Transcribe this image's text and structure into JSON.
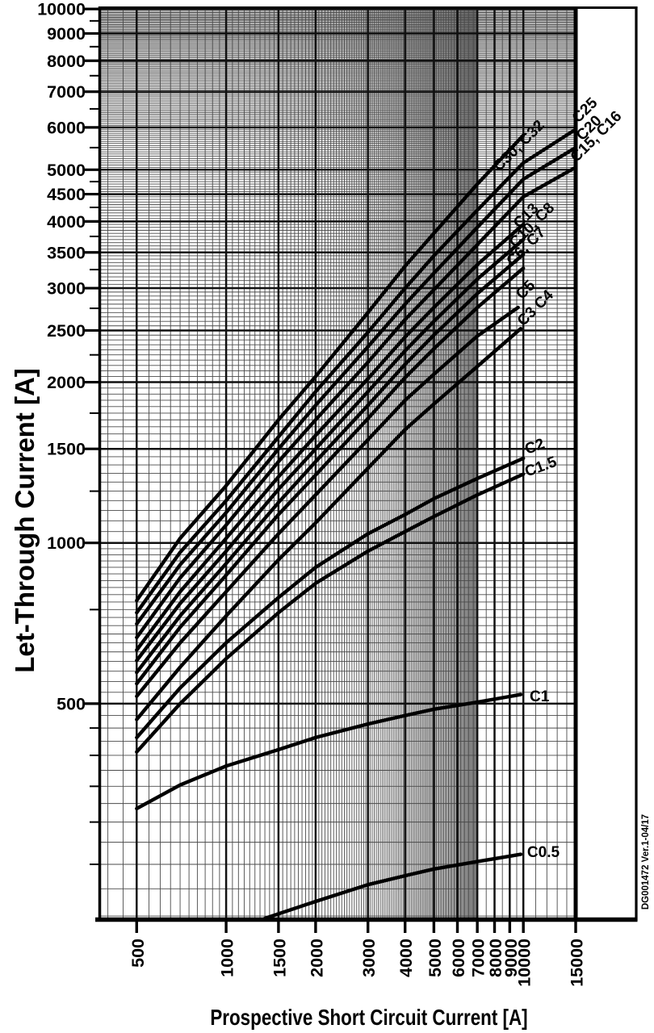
{
  "figure": {
    "y_axis_title": "Let-Through Current [A]",
    "x_axis_title": "Prospective Short Circuit Current [A]",
    "watermark": "DG001472  Ver.1-04/17",
    "colors": {
      "ink": "#000000",
      "grid_minor": "#4a4a4a",
      "grid_major": "#111111",
      "background": "#ffffff"
    }
  },
  "chart_data": {
    "type": "line",
    "x_scale": "log",
    "y_scale": "log",
    "xlabel": "Prospective Short Circuit Current [A]",
    "ylabel": "Let-Through Current [A]",
    "xlim": [
      372,
      15000
    ],
    "ylim": [
      198,
      10110
    ],
    "grid": "on",
    "x_ticks": [
      [
        500,
        "500"
      ],
      [
        1000,
        "1000"
      ],
      [
        1500,
        "1500"
      ],
      [
        2000,
        "2000"
      ],
      [
        3000,
        "3000"
      ],
      [
        4000,
        "4000"
      ],
      [
        5000,
        "5000"
      ],
      [
        6000,
        "6000"
      ],
      [
        7000,
        "7000"
      ],
      [
        8000,
        "8000"
      ],
      [
        9000,
        "9000"
      ],
      [
        10000,
        "10000"
      ],
      [
        15000,
        "15000"
      ]
    ],
    "y_ticks": [
      [
        500,
        "500"
      ],
      [
        1000,
        "1000"
      ],
      [
        1500,
        "1500"
      ],
      [
        2000,
        "2000"
      ],
      [
        2500,
        "2500"
      ],
      [
        3000,
        "3000"
      ],
      [
        3500,
        "3500"
      ],
      [
        4000,
        "4000"
      ],
      [
        4500,
        "4500"
      ],
      [
        5000,
        "5000"
      ],
      [
        6000,
        "6000"
      ],
      [
        7000,
        "7000"
      ],
      [
        8000,
        "8000"
      ],
      [
        9000,
        "9000"
      ],
      [
        10000,
        "10000"
      ]
    ],
    "y_minor_ticks": [
      250,
      300,
      350,
      400,
      450,
      750,
      1250,
      1750,
      2250,
      2750,
      3250,
      3750,
      4250,
      4750,
      5500,
      6500,
      7500,
      8500,
      9500
    ],
    "grid_minor_x": [
      [
        400,
        7000,
        50
      ],
      [
        7000,
        10000,
        500
      ],
      [
        10000,
        15000,
        1000
      ]
    ],
    "grid_minor_y": [
      [
        200,
        1000,
        25
      ],
      [
        1000,
        10000,
        50
      ]
    ],
    "grid_major_x": [
      500,
      1000,
      1500,
      2000,
      3000,
      4000,
      5000,
      6000,
      7000,
      8000,
      9000,
      10000
    ],
    "grid_major_y": [
      500,
      1000,
      1500,
      2000,
      2500,
      3000,
      3500,
      4000,
      4500,
      5000,
      6000,
      7000,
      8000,
      9000,
      10000
    ],
    "series": [
      {
        "name": "C30, C32",
        "points": [
          [
            500,
            780
          ],
          [
            700,
            1020
          ],
          [
            1000,
            1280
          ],
          [
            1500,
            1700
          ],
          [
            2000,
            2050
          ],
          [
            3000,
            2700
          ],
          [
            4000,
            3300
          ],
          [
            5000,
            3800
          ],
          [
            7000,
            4700
          ],
          [
            10000,
            5800
          ]
        ]
      },
      {
        "name": "C25",
        "points": [
          [
            500,
            740
          ],
          [
            700,
            960
          ],
          [
            1000,
            1200
          ],
          [
            1500,
            1580
          ],
          [
            2000,
            1920
          ],
          [
            3000,
            2480
          ],
          [
            4000,
            3000
          ],
          [
            5000,
            3450
          ],
          [
            7000,
            4200
          ],
          [
            10000,
            5150
          ],
          [
            15000,
            5950
          ]
        ]
      },
      {
        "name": "C20",
        "points": [
          [
            500,
            705
          ],
          [
            700,
            910
          ],
          [
            1000,
            1140
          ],
          [
            1500,
            1500
          ],
          [
            2000,
            1810
          ],
          [
            3000,
            2330
          ],
          [
            4000,
            2800
          ],
          [
            5000,
            3200
          ],
          [
            7000,
            3900
          ],
          [
            10000,
            4800
          ],
          [
            15000,
            5500
          ]
        ]
      },
      {
        "name": "C15, C16",
        "points": [
          [
            500,
            665
          ],
          [
            700,
            860
          ],
          [
            1000,
            1080
          ],
          [
            1500,
            1420
          ],
          [
            2000,
            1700
          ],
          [
            3000,
            2180
          ],
          [
            4000,
            2620
          ],
          [
            5000,
            2980
          ],
          [
            7000,
            3620
          ],
          [
            10000,
            4450
          ],
          [
            15000,
            5050
          ]
        ]
      },
      {
        "name": "C13",
        "points": [
          [
            500,
            630
          ],
          [
            700,
            810
          ],
          [
            1000,
            1020
          ],
          [
            1500,
            1330
          ],
          [
            2000,
            1590
          ],
          [
            3000,
            2030
          ],
          [
            4000,
            2430
          ],
          [
            5000,
            2760
          ],
          [
            7000,
            3320
          ],
          [
            10000,
            3950
          ]
        ]
      },
      {
        "name": "C10",
        "points": [
          [
            500,
            602
          ],
          [
            700,
            770
          ],
          [
            1000,
            965
          ],
          [
            1500,
            1260
          ],
          [
            2000,
            1500
          ],
          [
            3000,
            1920
          ],
          [
            4000,
            2290
          ],
          [
            5000,
            2600
          ],
          [
            7000,
            3120
          ],
          [
            10000,
            3700
          ]
        ]
      },
      {
        "name": "C8",
        "points": [
          [
            500,
            572
          ],
          [
            700,
            730
          ],
          [
            1000,
            915
          ],
          [
            1500,
            1190
          ],
          [
            2000,
            1420
          ],
          [
            3000,
            1810
          ],
          [
            4000,
            2160
          ],
          [
            5000,
            2450
          ],
          [
            7000,
            2930
          ],
          [
            10000,
            3470
          ]
        ]
      },
      {
        "name": "C6, C7",
        "points": [
          [
            500,
            545
          ],
          [
            700,
            695
          ],
          [
            1000,
            870
          ],
          [
            1500,
            1130
          ],
          [
            2000,
            1340
          ],
          [
            3000,
            1710
          ],
          [
            4000,
            2040
          ],
          [
            5000,
            2310
          ],
          [
            7000,
            2760
          ],
          [
            10000,
            3270
          ]
        ]
      },
      {
        "name": "C5",
        "points": [
          [
            500,
            516
          ],
          [
            700,
            650
          ],
          [
            1000,
            810
          ],
          [
            1500,
            1040
          ],
          [
            2000,
            1230
          ],
          [
            3000,
            1560
          ],
          [
            4000,
            1850
          ],
          [
            5000,
            2070
          ],
          [
            7000,
            2440
          ],
          [
            9600,
            2760
          ]
        ]
      },
      {
        "name": "C3 C4",
        "points": [
          [
            500,
            467
          ],
          [
            700,
            585
          ],
          [
            1000,
            730
          ],
          [
            1500,
            930
          ],
          [
            2000,
            1090
          ],
          [
            3000,
            1380
          ],
          [
            4000,
            1630
          ],
          [
            5000,
            1820
          ],
          [
            7000,
            2140
          ],
          [
            9800,
            2520
          ]
        ]
      },
      {
        "name": "C2",
        "points": [
          [
            500,
            432
          ],
          [
            700,
            535
          ],
          [
            1000,
            650
          ],
          [
            1500,
            790
          ],
          [
            2000,
            900
          ],
          [
            3000,
            1040
          ],
          [
            4000,
            1130
          ],
          [
            5000,
            1210
          ],
          [
            7000,
            1320
          ],
          [
            10000,
            1440
          ]
        ]
      },
      {
        "name": "C1.5",
        "points": [
          [
            500,
            406
          ],
          [
            700,
            500
          ],
          [
            1000,
            607
          ],
          [
            1500,
            740
          ],
          [
            2000,
            840
          ],
          [
            3000,
            965
          ],
          [
            4000,
            1050
          ],
          [
            5000,
            1120
          ],
          [
            7000,
            1230
          ],
          [
            10000,
            1345
          ]
        ]
      },
      {
        "name": "C1",
        "points": [
          [
            500,
            318
          ],
          [
            700,
            352
          ],
          [
            1000,
            382
          ],
          [
            1500,
            410
          ],
          [
            2000,
            432
          ],
          [
            3000,
            458
          ],
          [
            4000,
            475
          ],
          [
            5000,
            488
          ],
          [
            7000,
            503
          ],
          [
            9800,
            520
          ]
        ]
      },
      {
        "name": "C0.5",
        "points": [
          [
            1350,
            198
          ],
          [
            2000,
            213
          ],
          [
            3000,
            229
          ],
          [
            4000,
            238
          ],
          [
            5000,
            245
          ],
          [
            7000,
            253
          ],
          [
            9800,
            261
          ]
        ]
      }
    ],
    "curve_labels": [
      {
        "text": "C30, C32",
        "x": 8300,
        "y": 4950,
        "rot": -45
      },
      {
        "text": "C25",
        "x": 15300,
        "y": 6100,
        "rot": -45
      },
      {
        "text": "C20",
        "x": 15800,
        "y": 5650,
        "rot": -45
      },
      {
        "text": "C15, C16",
        "x": 15100,
        "y": 5150,
        "rot": -45
      },
      {
        "text": "C13",
        "x": 9700,
        "y": 3870,
        "rot": -45
      },
      {
        "text": "C10, C8",
        "x": 9400,
        "y": 3560,
        "rot": -45
      },
      {
        "text": "C6, C7",
        "x": 9200,
        "y": 3290,
        "rot": -45
      },
      {
        "text": "C5",
        "x": 9900,
        "y": 2850,
        "rot": -45
      },
      {
        "text": "C3 C4",
        "x": 10000,
        "y": 2540,
        "rot": -45
      },
      {
        "text": "C2",
        "x": 10300,
        "y": 1465,
        "rot": -20
      },
      {
        "text": "C1.5",
        "x": 10300,
        "y": 1330,
        "rot": -20
      },
      {
        "text": "C1",
        "x": 10500,
        "y": 505,
        "rot": 0
      },
      {
        "text": "C0.5",
        "x": 10300,
        "y": 258,
        "rot": 0
      }
    ]
  }
}
